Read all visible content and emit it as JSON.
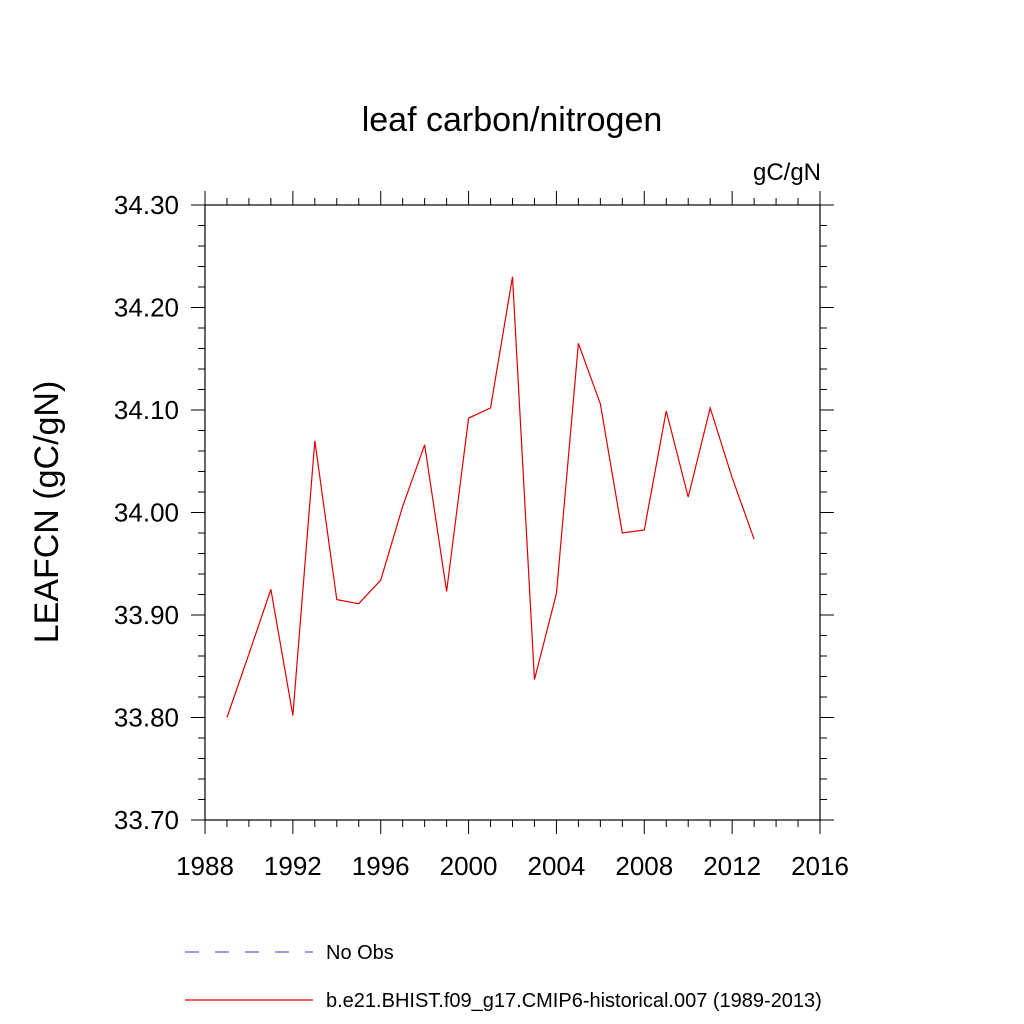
{
  "chart_data": {
    "type": "line",
    "title": "leaf carbon/nitrogen",
    "units": "gC/gN",
    "xlabel": "",
    "ylabel": "LEAFCN  (gC/gN)",
    "xlim": [
      1988,
      2016
    ],
    "ylim": [
      33.7,
      34.3
    ],
    "x_ticks": [
      "1988",
      "1992",
      "1996",
      "2000",
      "2004",
      "2008",
      "2012",
      "2016"
    ],
    "y_ticks": [
      "33.70",
      "33.80",
      "33.90",
      "34.00",
      "34.10",
      "34.20",
      "34.30"
    ],
    "grid": false,
    "legend_position": "bottom",
    "series": [
      {
        "name": "No Obs",
        "color": "#6a5acd",
        "dash": "dashed",
        "x": [],
        "y": []
      },
      {
        "name": "b.e21.BHIST.f09_g17.CMIP6-historical.007 (1989-2013)",
        "color": "#e00000",
        "dash": "solid",
        "x": [
          1989,
          1990,
          1991,
          1992,
          1993,
          1994,
          1995,
          1996,
          1997,
          1998,
          1999,
          2000,
          2001,
          2002,
          2003,
          2004,
          2005,
          2006,
          2007,
          2008,
          2009,
          2010,
          2011,
          2012,
          2013
        ],
        "y": [
          33.8,
          33.862,
          33.925,
          33.802,
          34.07,
          33.915,
          33.911,
          33.934,
          34.006,
          34.066,
          33.923,
          34.092,
          34.102,
          34.23,
          33.837,
          33.921,
          34.165,
          34.106,
          33.98,
          33.983,
          34.099,
          34.015,
          34.102,
          34.034,
          33.974
        ]
      }
    ]
  }
}
